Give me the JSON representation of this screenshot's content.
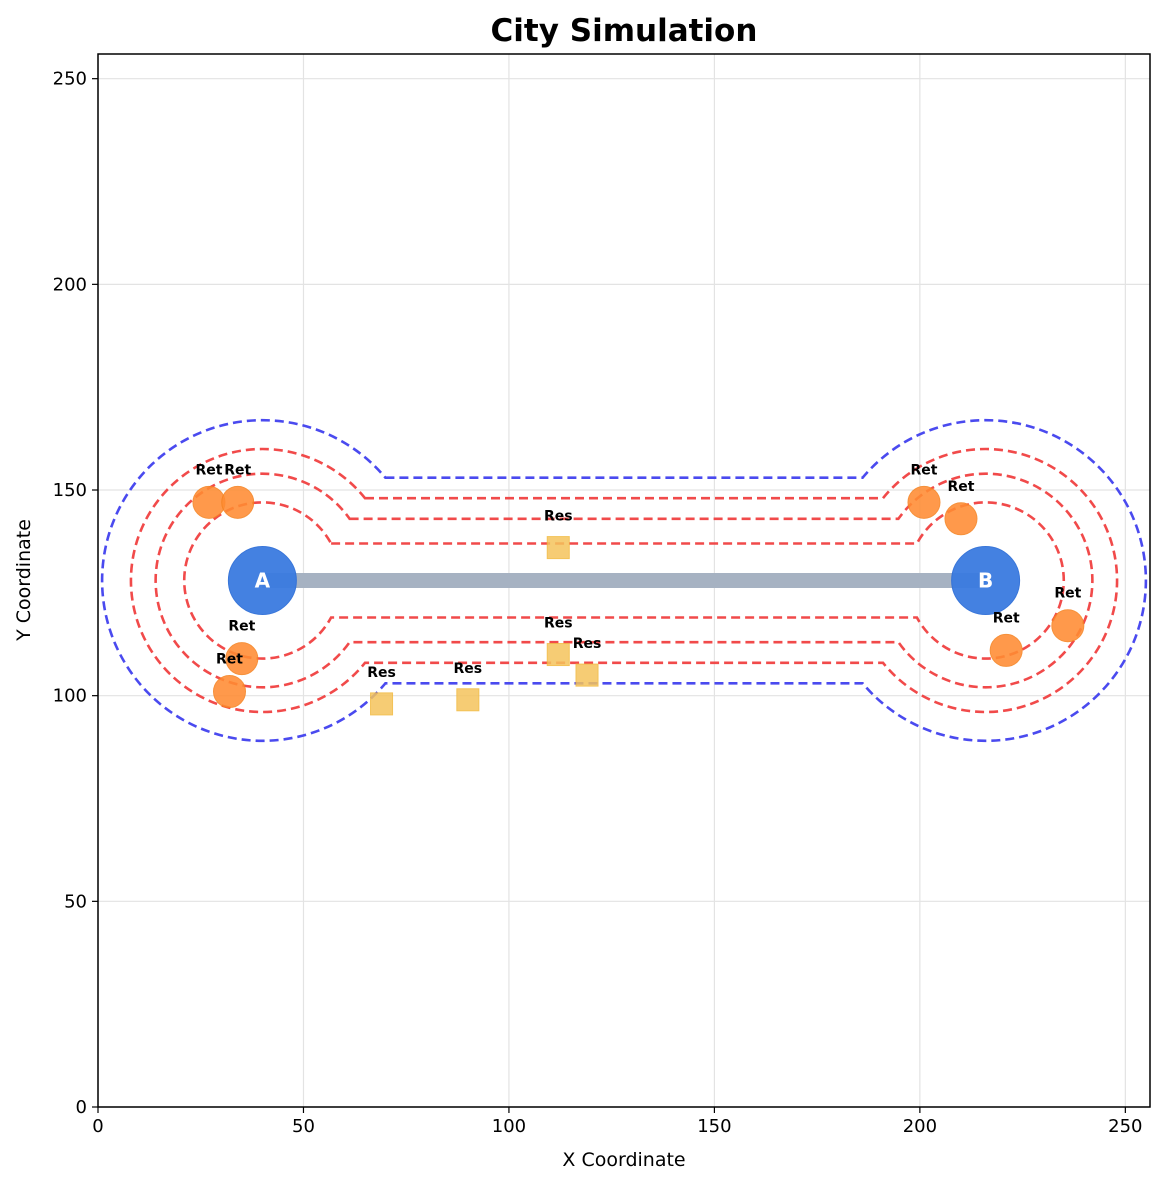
{
  "chart_data": {
    "type": "scatter",
    "title": "City Simulation",
    "xlabel": "X Coordinate",
    "ylabel": "Y Coordinate",
    "xlim": [
      0,
      256
    ],
    "ylim": [
      0,
      256
    ],
    "xticks": [
      0,
      50,
      100,
      150,
      200,
      250
    ],
    "yticks": [
      0,
      50,
      100,
      150,
      200,
      250
    ],
    "grid": true,
    "colors": {
      "node": "#3a7be0",
      "road": "#a6b2c2",
      "retail": "#ff8c33",
      "residential": "#f5c45c",
      "contour_inner": "#f04040",
      "contour_outer": "#4040ee"
    },
    "nodes": [
      {
        "label": "A",
        "x": 40,
        "y": 128
      },
      {
        "label": "B",
        "x": 216,
        "y": 128
      }
    ],
    "road": {
      "from": "A",
      "to": "B"
    },
    "retail": [
      {
        "label": "Ret",
        "x": 27,
        "y": 147
      },
      {
        "label": "Ret",
        "x": 34,
        "y": 147
      },
      {
        "label": "Ret",
        "x": 35,
        "y": 109
      },
      {
        "label": "Ret",
        "x": 32,
        "y": 101
      },
      {
        "label": "Ret",
        "x": 201,
        "y": 147
      },
      {
        "label": "Ret",
        "x": 210,
        "y": 143
      },
      {
        "label": "Ret",
        "x": 236,
        "y": 117
      },
      {
        "label": "Ret",
        "x": 221,
        "y": 111
      }
    ],
    "residential": [
      {
        "label": "Res",
        "x": 112,
        "y": 136
      },
      {
        "label": "Res",
        "x": 112,
        "y": 110
      },
      {
        "label": "Res",
        "x": 119,
        "y": 105
      },
      {
        "label": "Res",
        "x": 69,
        "y": 98
      },
      {
        "label": "Res",
        "x": 90,
        "y": 99
      }
    ],
    "contours": [
      {
        "style": "inner",
        "radius": 19,
        "half_width": 9
      },
      {
        "style": "inner",
        "radius": 26,
        "half_width": 15
      },
      {
        "style": "inner",
        "radius": 32,
        "half_width": 20
      },
      {
        "style": "outer",
        "radius": 39,
        "half_width": 25
      }
    ]
  }
}
